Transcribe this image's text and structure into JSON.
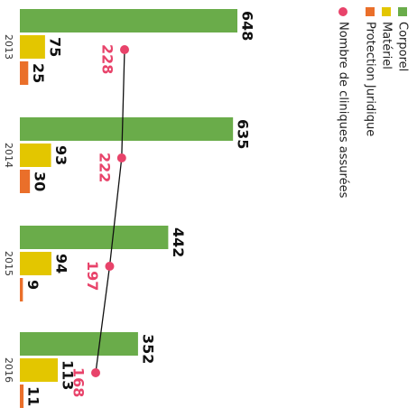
{
  "chart_data": {
    "type": "bar",
    "categories": [
      "2013",
      "2014",
      "2015",
      "2016"
    ],
    "series": [
      {
        "name": "Corporel",
        "color": "#6aac4a",
        "values": [
          648,
          635,
          442,
          352
        ]
      },
      {
        "name": "Matériel",
        "color": "#e3c600",
        "values": [
          75,
          93,
          94,
          113
        ]
      },
      {
        "name": "Protection Juridique",
        "color": "#ea6f2a",
        "values": [
          25,
          30,
          9,
          11
        ]
      },
      {
        "name": "Nombre de cliniques assurées",
        "type": "line",
        "color": "#e8436a",
        "values": [
          228,
          222,
          197,
          168
        ]
      }
    ]
  }
}
